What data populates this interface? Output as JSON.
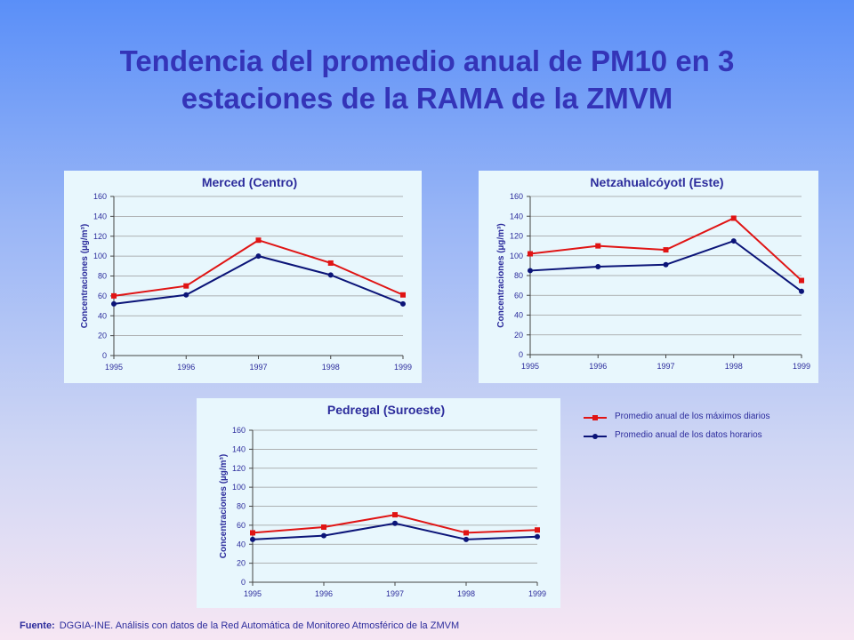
{
  "title": {
    "line1": "Tendencia del promedio anual de PM10 en 3",
    "line2": "estaciones de la RAMA de la ZMVM"
  },
  "colors": {
    "title": "#3434b8",
    "max_series": "#e01414",
    "avg_series": "#0b1478",
    "panel_bg": "#e8f7fd"
  },
  "legend": {
    "max_label": "Promedio anual de los máximos diarios",
    "avg_label": "Promedio anual de los datos horarios"
  },
  "source": {
    "label": "Fuente:",
    "text": "DGGIA-INE.  Análisis con datos de la Red Automática de Monitoreo Atmosférico de la ZMVM"
  },
  "chart_data": [
    {
      "type": "line",
      "title": "Merced (Centro)",
      "ylabel": "Concentraciones (µg/m³)",
      "x": [
        "1995",
        "1996",
        "1997",
        "1998",
        "1999"
      ],
      "ylim": [
        0,
        160
      ],
      "yticks": [
        0,
        20,
        40,
        60,
        80,
        100,
        120,
        140,
        160
      ],
      "grid": true,
      "series": [
        {
          "name": "Promedio anual de los máximos diarios",
          "marker": "square",
          "values": [
            60,
            70,
            116,
            93,
            61
          ]
        },
        {
          "name": "Promedio anual de los datos horarios",
          "marker": "circle",
          "values": [
            52,
            61,
            100,
            81,
            52
          ]
        }
      ]
    },
    {
      "type": "line",
      "title": "Netzahualcóyotl (Este)",
      "ylabel": "Concentraciones (µg/m³)",
      "x": [
        "1995",
        "1996",
        "1997",
        "1998",
        "1999"
      ],
      "ylim": [
        0,
        160
      ],
      "yticks": [
        0,
        20,
        40,
        60,
        80,
        100,
        120,
        140,
        160
      ],
      "grid": true,
      "series": [
        {
          "name": "Promedio anual de los máximos diarios",
          "marker": "square",
          "values": [
            102,
            110,
            106,
            138,
            75
          ]
        },
        {
          "name": "Promedio anual de los datos horarios",
          "marker": "circle",
          "values": [
            85,
            89,
            91,
            115,
            64
          ]
        }
      ]
    },
    {
      "type": "line",
      "title": "Pedregal (Suroeste)",
      "ylabel": "Concentraciones (µg/m³)",
      "x": [
        "1995",
        "1996",
        "1997",
        "1998",
        "1999"
      ],
      "ylim": [
        0,
        160
      ],
      "yticks": [
        0,
        20,
        40,
        60,
        80,
        100,
        120,
        140,
        160
      ],
      "grid": true,
      "series": [
        {
          "name": "Promedio anual de los máximos diarios",
          "marker": "square",
          "values": [
            52,
            58,
            71,
            52,
            55
          ]
        },
        {
          "name": "Promedio anual de los datos horarios",
          "marker": "circle",
          "values": [
            45,
            49,
            62,
            45,
            48
          ]
        }
      ]
    }
  ]
}
